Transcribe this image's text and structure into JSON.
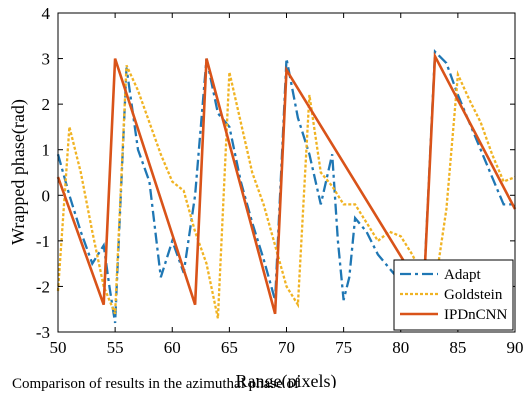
{
  "chart_data": {
    "type": "line",
    "xlabel": "Range(pixels)",
    "ylabel": "Wrapped phase(rad)",
    "xlim": [
      50,
      90
    ],
    "ylim": [
      -3,
      4
    ],
    "xticks": [
      50,
      55,
      60,
      65,
      70,
      75,
      80,
      85,
      90
    ],
    "yticks": [
      -3,
      -2,
      -1,
      0,
      1,
      2,
      3,
      4
    ],
    "grid": false,
    "legend_position": "bottom-right",
    "series": [
      {
        "name": "Adapt",
        "color": "#1f77b4",
        "style": "dashdot",
        "x": [
          50,
          51,
          52,
          53,
          53.5,
          54,
          54.5,
          55,
          56,
          57,
          58,
          59,
          60,
          61,
          62,
          63,
          64,
          65,
          66,
          67,
          68,
          69,
          70,
          71,
          72,
          73,
          74,
          74.5,
          75,
          75.5,
          76,
          77,
          78,
          79,
          80,
          81,
          82,
          83,
          84,
          85,
          86,
          87,
          88,
          89,
          90
        ],
        "y": [
          0.9,
          0.0,
          -0.8,
          -1.5,
          -1.3,
          -1.1,
          -2.0,
          -2.8,
          2.8,
          1.0,
          0.3,
          -1.8,
          -1.0,
          -1.7,
          0.0,
          3.0,
          1.8,
          1.5,
          0.3,
          -0.6,
          -1.4,
          -2.3,
          3.0,
          1.7,
          0.9,
          -0.2,
          0.9,
          -1.0,
          -2.3,
          -1.8,
          -0.5,
          -0.8,
          -1.3,
          -1.6,
          -1.9,
          -2.0,
          -2.1,
          3.15,
          2.9,
          2.2,
          1.6,
          1.0,
          0.4,
          -0.2,
          -0.2
        ]
      },
      {
        "name": "Goldstein",
        "color": "#f0b323",
        "style": "dotted",
        "x": [
          50,
          51,
          52,
          53,
          54,
          55,
          56,
          57,
          58,
          59,
          60,
          61,
          62,
          63,
          64,
          65,
          66,
          67,
          68,
          69,
          70,
          71,
          72,
          73,
          74,
          75,
          76,
          77,
          78,
          79,
          80,
          81,
          82,
          83,
          84,
          85,
          86,
          87,
          88,
          89,
          90
        ],
        "y": [
          -2.1,
          1.5,
          0.5,
          -0.8,
          -2.0,
          -2.6,
          2.85,
          2.3,
          1.6,
          0.9,
          0.3,
          0.1,
          -0.8,
          -1.5,
          -2.7,
          2.7,
          1.6,
          0.5,
          -0.2,
          -1.1,
          -2.0,
          -2.4,
          2.2,
          0.5,
          0.2,
          -0.2,
          -0.2,
          -0.6,
          -1.0,
          -0.8,
          -0.9,
          -1.3,
          -1.8,
          -2.0,
          -0.3,
          2.65,
          2.1,
          1.6,
          0.9,
          0.3,
          0.4
        ]
      },
      {
        "name": "IPDnCNN",
        "color": "#d95319",
        "style": "solid",
        "x": [
          50,
          54,
          55,
          62,
          63,
          69,
          70,
          82,
          83,
          90
        ],
        "y": [
          0.4,
          -2.4,
          3.0,
          -2.4,
          3.0,
          -2.6,
          2.75,
          -2.15,
          3.05,
          -0.3
        ]
      }
    ]
  },
  "caption_fragment": "Comparison of results in the azimuthal phase of"
}
